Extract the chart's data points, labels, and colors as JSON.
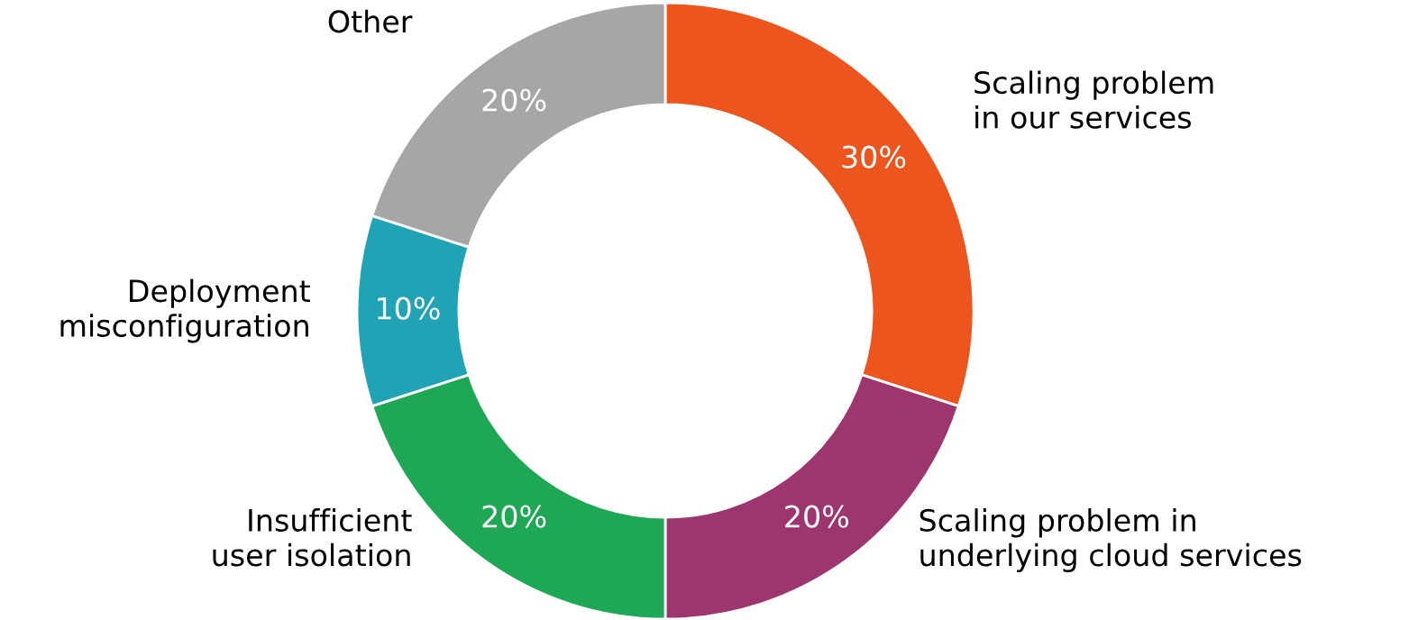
{
  "chart_data": {
    "type": "donut",
    "categories": [
      "Scaling problem\nin our services",
      "Scaling problem in\nunderlying cloud services",
      "Insufficient\nuser isolation",
      "Deployment\nmisconfiguration",
      "Other"
    ],
    "values": [
      30,
      20,
      20,
      10,
      20
    ],
    "colors": [
      "#ec561e",
      "#9d356f",
      "#1ea855",
      "#20a3b5",
      "#a6a6a6"
    ],
    "value_labels": [
      "30%",
      "20%",
      "20%",
      "10%",
      "20%"
    ]
  }
}
